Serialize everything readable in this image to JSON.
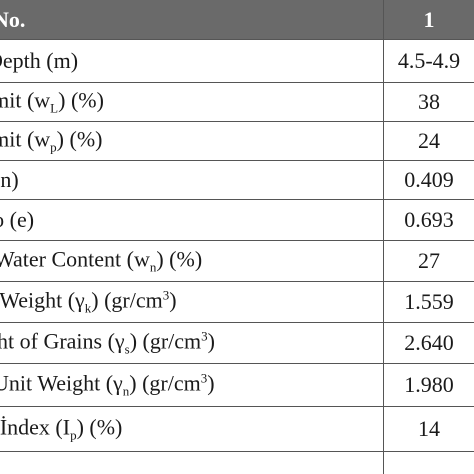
{
  "table": {
    "header": {
      "label": "No.",
      "value": "1"
    },
    "rows": [
      {
        "pre": "Depth (m)",
        "sub": "",
        "mid": "",
        "sup": "",
        "post": "",
        "value": "4.5-4.9"
      },
      {
        "pre": "imit (w",
        "sub": "L",
        "mid": ") (%)",
        "sup": "",
        "post": "",
        "value": "38"
      },
      {
        "pre": "imit (w",
        "sub": "p",
        "mid": ") (%)",
        "sup": "",
        "post": "",
        "value": "24"
      },
      {
        "pre": "(n)",
        "sub": "",
        "mid": "",
        "sup": "",
        "post": "",
        "value": "0.409"
      },
      {
        "pre": "io (e)",
        "sub": "",
        "mid": "",
        "sup": "",
        "post": "",
        "value": "0.693"
      },
      {
        "pre": "Water Content (w",
        "sub": "n",
        "mid": ") (%)",
        "sup": "",
        "post": "",
        "value": "27"
      },
      {
        "pre": "t Weight (γ",
        "sub": "k",
        "mid": ") (gr/cm",
        "sup": "3",
        "post": ")",
        "value": "1.559"
      },
      {
        "pre": "ght of Grains (γ",
        "sub": "s",
        "mid": ") (gr/cm",
        "sup": "3",
        "post": ")",
        "value": "2.640"
      },
      {
        "pre": "Unit Weight (γ",
        "sub": "n",
        "mid": ") (gr/cm",
        "sup": "3",
        "post": ")",
        "value": "1.980"
      },
      {
        "pre": "r İndex (I",
        "sub": "p",
        "mid": ") (%)",
        "sup": "",
        "post": "",
        "value": "14"
      }
    ]
  }
}
